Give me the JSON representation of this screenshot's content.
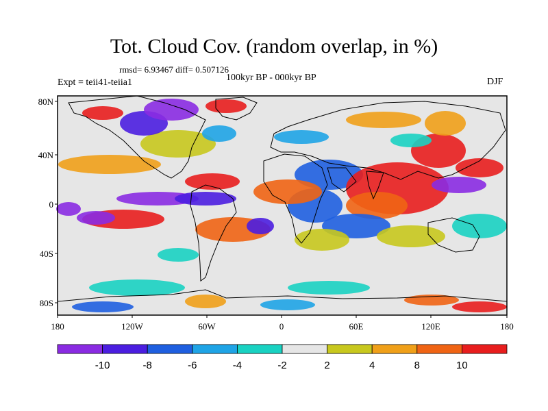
{
  "title": "Tot. Cloud Cov. (random overlap, in %)",
  "stats_text": "rmsd= 6.93467 diff= 0.507126",
  "experiment": "Expt = teii41-teiia1",
  "period": "100kyr BP - 000kyr BP",
  "season": "DJF",
  "map": {
    "lat_ticks": [
      "80N",
      "40N",
      "0",
      "40S",
      "80S"
    ],
    "lon_ticks": [
      "180",
      "120W",
      "60W",
      "0",
      "60E",
      "120E",
      "180"
    ]
  },
  "colorbar": {
    "colors": [
      "#8a2be2",
      "#4b1ee0",
      "#1f5fe0",
      "#1fa4e6",
      "#19d2c2",
      "#e6e6e6",
      "#c8c81e",
      "#f0a019",
      "#f06414",
      "#e81e1e"
    ],
    "labels": [
      "-10",
      "-8",
      "-6",
      "-4",
      "-2",
      "2",
      "4",
      "8",
      "10"
    ]
  }
}
